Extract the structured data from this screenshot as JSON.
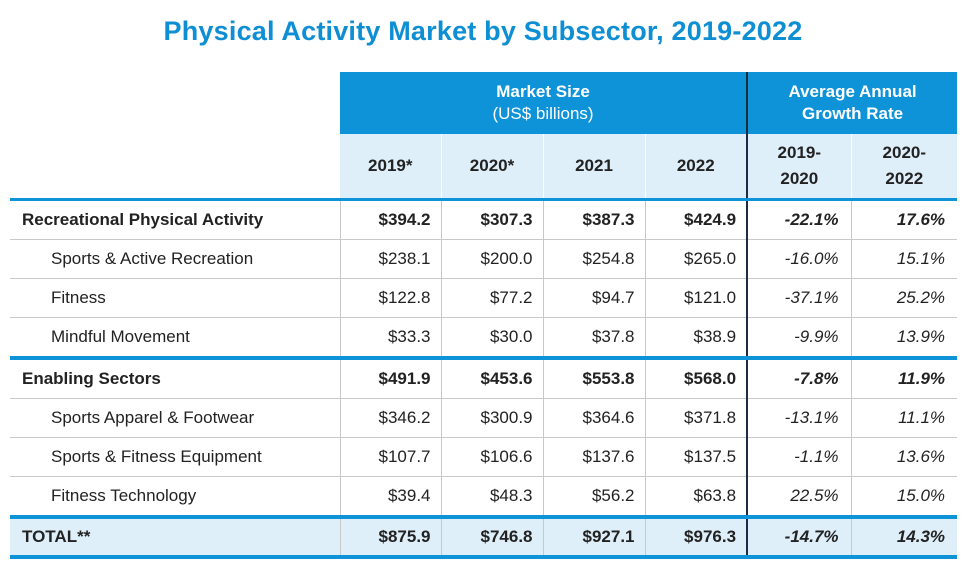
{
  "chart_data": {
    "type": "table",
    "title": "Physical Activity Market by Subsector, 2019-2022",
    "group_headers": {
      "market_size": "Market Size",
      "market_size_unit": "(US$ billions)",
      "growth": "Average Annual Growth Rate"
    },
    "columns": {
      "y2019": "2019*",
      "y2020": "2020*",
      "y2021": "2021",
      "y2022": "2022",
      "g1_top": "2019-",
      "g1_bottom": "2020",
      "g2_top": "2020-",
      "g2_bottom": "2022"
    },
    "rows": [
      {
        "label": "Recreational Physical Activity",
        "kind": "group",
        "values": [
          "$394.2",
          "$307.3",
          "$387.3",
          "$424.9"
        ],
        "growth": [
          "-22.1%",
          "17.6%"
        ]
      },
      {
        "label": "Sports & Active Recreation",
        "kind": "sub",
        "values": [
          "$238.1",
          "$200.0",
          "$254.8",
          "$265.0"
        ],
        "growth": [
          "-16.0%",
          "15.1%"
        ]
      },
      {
        "label": "Fitness",
        "kind": "sub",
        "values": [
          "$122.8",
          "$77.2",
          "$94.7",
          "$121.0"
        ],
        "growth": [
          "-37.1%",
          "25.2%"
        ]
      },
      {
        "label": "Mindful Movement",
        "kind": "sub",
        "values": [
          "$33.3",
          "$30.0",
          "$37.8",
          "$38.9"
        ],
        "growth": [
          "-9.9%",
          "13.9%"
        ]
      },
      {
        "label": "Enabling Sectors",
        "kind": "group",
        "values": [
          "$491.9",
          "$453.6",
          "$553.8",
          "$568.0"
        ],
        "growth": [
          "-7.8%",
          "11.9%"
        ]
      },
      {
        "label": "Sports Apparel & Footwear",
        "kind": "sub",
        "values": [
          "$346.2",
          "$300.9",
          "$364.6",
          "$371.8"
        ],
        "growth": [
          "-13.1%",
          "11.1%"
        ]
      },
      {
        "label": "Sports & Fitness Equipment",
        "kind": "sub",
        "values": [
          "$107.7",
          "$106.6",
          "$137.6",
          "$137.5"
        ],
        "growth": [
          "-1.1%",
          "13.6%"
        ]
      },
      {
        "label": "Fitness Technology",
        "kind": "sub",
        "values": [
          "$39.4",
          "$48.3",
          "$56.2",
          "$63.8"
        ],
        "growth": [
          "22.5%",
          "15.0%"
        ]
      },
      {
        "label": "TOTAL**",
        "kind": "total",
        "values": [
          "$875.9",
          "$746.8",
          "$927.1",
          "$976.3"
        ],
        "growth": [
          "-14.7%",
          "14.3%"
        ]
      }
    ]
  },
  "colors": {
    "accent": "#0e93d8",
    "light": "#deeffa",
    "title": "#0e8fd3"
  }
}
